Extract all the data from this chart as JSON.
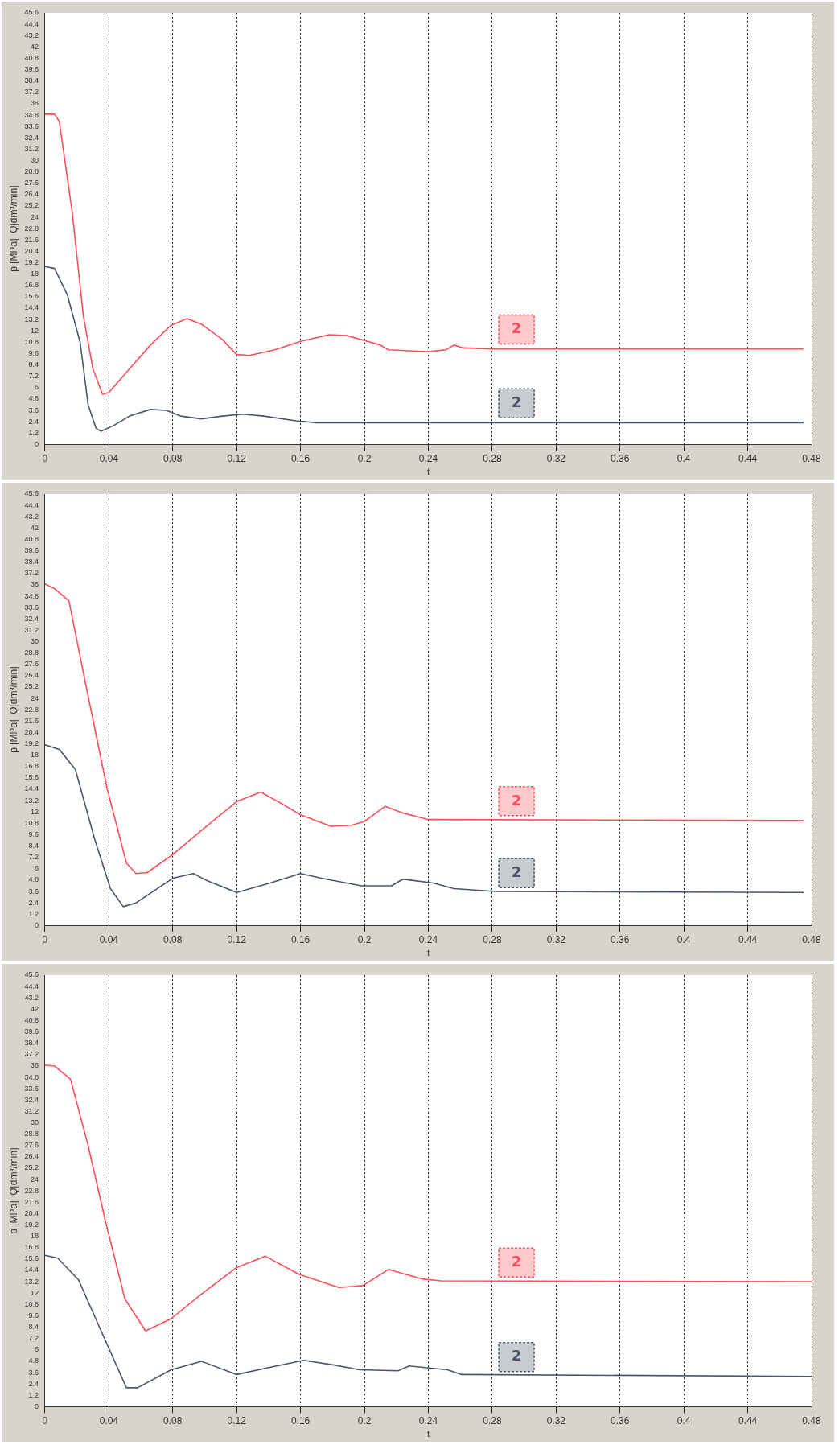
{
  "chart_data": [
    {
      "type": "line",
      "xlabel": "t",
      "ylabel": "p [MPa]  Q[dm³/min]",
      "xlim": [
        0,
        0.48
      ],
      "xticks": [
        0,
        0.04,
        0.08,
        0.12,
        0.16,
        0.2,
        0.24,
        0.28,
        0.32,
        0.36,
        0.4,
        0.44,
        0.48
      ],
      "ylim": [
        0,
        45.6
      ],
      "yticks": [
        0,
        1.2,
        2.4,
        3.6,
        4.8,
        6,
        7.2,
        8.4,
        9.6,
        10.8,
        12,
        13.2,
        14.4,
        15.6,
        16.8,
        18,
        19.2,
        20.4,
        21.6,
        22.8,
        24,
        25.2,
        26.4,
        27.6,
        28.8,
        30,
        31.2,
        32.4,
        33.6,
        34.8,
        36,
        37.2,
        38.4,
        39.6,
        40.8,
        42,
        43.2,
        44.4,
        45.6
      ],
      "grid": "x",
      "legend": false,
      "marker": "none",
      "line_style": "solid",
      "series": [
        {
          "name": "2",
          "color": "#ff4d5a",
          "x": [
            0,
            0.006,
            0.009,
            0.017,
            0.024,
            0.03,
            0.036,
            0.04,
            0.053,
            0.066,
            0.079,
            0.089,
            0.098,
            0.111,
            0.12,
            0.128,
            0.144,
            0.16,
            0.178,
            0.189,
            0.202,
            0.21,
            0.215,
            0.24,
            0.251,
            0.256,
            0.262,
            0.28,
            0.475
          ],
          "values": [
            34.9,
            34.9,
            34.1,
            24.6,
            13.6,
            8.0,
            5.3,
            5.5,
            8.0,
            10.5,
            12.6,
            13.3,
            12.7,
            11.1,
            9.5,
            9.4,
            10.0,
            10.9,
            11.6,
            11.5,
            10.9,
            10.5,
            10.0,
            9.8,
            10.0,
            10.5,
            10.2,
            10.1,
            10.1
          ]
        },
        {
          "name": "2",
          "color": "#4a5568",
          "x": [
            0,
            0.006,
            0.014,
            0.022,
            0.027,
            0.032,
            0.035,
            0.043,
            0.053,
            0.066,
            0.076,
            0.085,
            0.098,
            0.111,
            0.124,
            0.137,
            0.157,
            0.17,
            0.475
          ],
          "values": [
            18.8,
            18.6,
            15.8,
            10.8,
            4.2,
            1.7,
            1.4,
            2.0,
            3.0,
            3.7,
            3.6,
            3.0,
            2.7,
            3.0,
            3.2,
            3.0,
            2.5,
            2.3,
            2.3
          ]
        }
      ]
    },
    {
      "type": "line",
      "xlabel": "t",
      "ylabel": "p [MPa]  Q[dm³/min]",
      "xlim": [
        0,
        0.48
      ],
      "xticks": [
        0,
        0.04,
        0.08,
        0.12,
        0.16,
        0.2,
        0.24,
        0.28,
        0.32,
        0.36,
        0.4,
        0.44,
        0.48
      ],
      "ylim": [
        0,
        45.6
      ],
      "yticks": [
        0,
        1.2,
        2.4,
        3.6,
        4.8,
        6,
        7.2,
        8.4,
        9.6,
        10.8,
        12,
        13.2,
        14.4,
        15.6,
        16.8,
        18,
        19.2,
        20.4,
        21.6,
        22.8,
        24,
        25.2,
        26.4,
        27.6,
        28.8,
        30,
        31.2,
        32.4,
        33.6,
        34.8,
        36,
        37.2,
        38.4,
        39.6,
        40.8,
        42,
        43.2,
        44.4,
        45.6
      ],
      "grid": "x",
      "legend": false,
      "marker": "none",
      "line_style": "solid",
      "series": [
        {
          "name": "2",
          "color": "#ff4d5a",
          "x": [
            0,
            0.006,
            0.015,
            0.025,
            0.039,
            0.051,
            0.057,
            0.064,
            0.08,
            0.099,
            0.12,
            0.135,
            0.148,
            0.16,
            0.179,
            0.192,
            0.2,
            0.213,
            0.224,
            0.24,
            0.475
          ],
          "values": [
            36.1,
            35.6,
            34.3,
            25.9,
            14.4,
            6.6,
            5.5,
            5.6,
            7.5,
            10.2,
            13.1,
            14.1,
            12.9,
            11.7,
            10.5,
            10.6,
            11.0,
            12.6,
            11.9,
            11.2,
            11.1
          ]
        },
        {
          "name": "2",
          "color": "#4a5568",
          "x": [
            0,
            0.009,
            0.019,
            0.031,
            0.041,
            0.049,
            0.057,
            0.08,
            0.093,
            0.102,
            0.12,
            0.141,
            0.16,
            0.173,
            0.198,
            0.217,
            0.224,
            0.243,
            0.256,
            0.282,
            0.475
          ],
          "values": [
            19.1,
            18.6,
            16.5,
            9.2,
            3.9,
            2.0,
            2.4,
            5.0,
            5.5,
            4.7,
            3.5,
            4.5,
            5.5,
            5.0,
            4.2,
            4.2,
            4.9,
            4.5,
            3.9,
            3.6,
            3.5
          ]
        }
      ]
    },
    {
      "type": "line",
      "xlabel": "t",
      "ylabel": "p [MPa]  Q[dm³/min]",
      "xlim": [
        0,
        0.48
      ],
      "xticks": [
        0,
        0.04,
        0.08,
        0.12,
        0.16,
        0.2,
        0.24,
        0.28,
        0.32,
        0.36,
        0.4,
        0.44,
        0.48
      ],
      "ylim": [
        0,
        45.6
      ],
      "yticks": [
        0,
        1.2,
        2.4,
        3.6,
        4.8,
        6,
        7.2,
        8.4,
        9.6,
        10.8,
        12,
        13.2,
        14.4,
        15.6,
        16.8,
        18,
        19.2,
        20.4,
        21.6,
        22.8,
        24,
        25.2,
        26.4,
        27.6,
        28.8,
        30,
        31.2,
        32.4,
        33.6,
        34.8,
        36,
        37.2,
        38.4,
        39.6,
        40.8,
        42,
        43.2,
        44.4,
        45.6
      ],
      "grid": "x",
      "legend": false,
      "marker": "none",
      "line_style": "solid",
      "series": [
        {
          "name": "2",
          "color": "#ff4d5a",
          "x": [
            0,
            0.006,
            0.016,
            0.027,
            0.038,
            0.05,
            0.063,
            0.079,
            0.098,
            0.12,
            0.138,
            0.159,
            0.184,
            0.199,
            0.215,
            0.236,
            0.248,
            0.48
          ],
          "values": [
            36.1,
            36.0,
            34.6,
            27.6,
            19.5,
            11.4,
            8.0,
            9.3,
            11.9,
            14.7,
            15.9,
            14.0,
            12.6,
            12.8,
            14.5,
            13.5,
            13.3,
            13.2
          ]
        },
        {
          "name": "2",
          "color": "#4a5568",
          "x": [
            0,
            0.008,
            0.021,
            0.037,
            0.051,
            0.058,
            0.079,
            0.098,
            0.12,
            0.139,
            0.162,
            0.181,
            0.197,
            0.221,
            0.228,
            0.252,
            0.261,
            0.48
          ],
          "values": [
            16.0,
            15.7,
            13.4,
            7.3,
            2.0,
            2.0,
            3.9,
            4.8,
            3.4,
            4.1,
            4.9,
            4.4,
            3.9,
            3.8,
            4.3,
            3.9,
            3.4,
            3.2
          ]
        }
      ]
    }
  ]
}
